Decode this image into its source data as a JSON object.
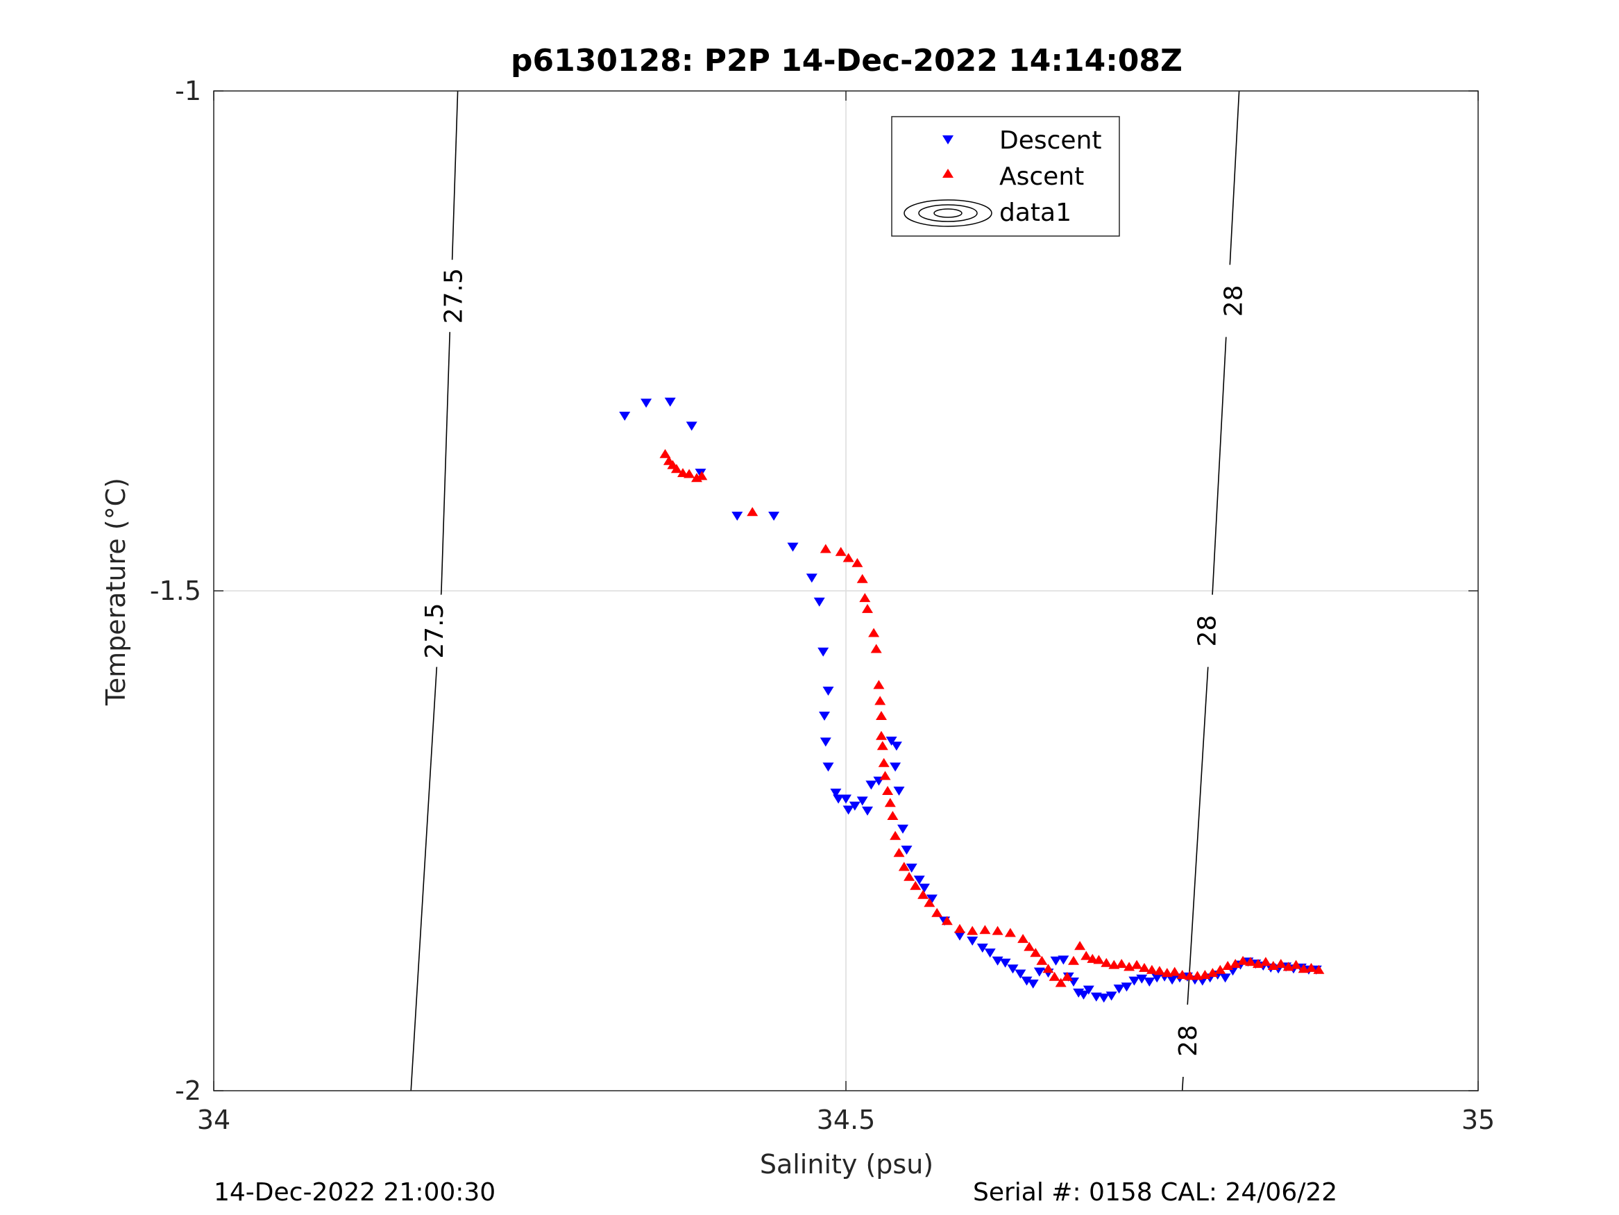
{
  "chart_data": {
    "type": "scatter",
    "title": "p6130128: P2P 14-Dec-2022 14:14:08Z",
    "xlabel": "Salinity (psu)",
    "ylabel": "Temperature (°C)",
    "xlim": [
      34,
      35
    ],
    "ylim": [
      -2,
      -1
    ],
    "xticks": [
      "34",
      "34.5",
      "35"
    ],
    "yticks": [
      "-1",
      "-1.5",
      "-2"
    ],
    "grid": true,
    "legend": {
      "placement": "top-center",
      "entries": [
        "Descent",
        "Ascent",
        "data1"
      ]
    },
    "series": [
      {
        "name": "Descent",
        "marker": "triangle-down",
        "color": "#0000ff",
        "points": [
          [
            34.325,
            -1.325
          ],
          [
            34.342,
            -1.312
          ],
          [
            34.361,
            -1.311
          ],
          [
            34.378,
            -1.335
          ],
          [
            34.385,
            -1.382
          ],
          [
            34.414,
            -1.425
          ],
          [
            34.443,
            -1.425
          ],
          [
            34.458,
            -1.456
          ],
          [
            34.473,
            -1.487
          ],
          [
            34.479,
            -1.511
          ],
          [
            34.482,
            -1.561
          ],
          [
            34.486,
            -1.6
          ],
          [
            34.483,
            -1.625
          ],
          [
            34.484,
            -1.651
          ],
          [
            34.486,
            -1.676
          ],
          [
            34.492,
            -1.702
          ],
          [
            34.494,
            -1.708
          ],
          [
            34.5,
            -1.708
          ],
          [
            34.502,
            -1.719
          ],
          [
            34.507,
            -1.715
          ],
          [
            34.513,
            -1.71
          ],
          [
            34.517,
            -1.72
          ],
          [
            34.52,
            -1.694
          ],
          [
            34.526,
            -1.69
          ],
          [
            34.536,
            -1.65
          ],
          [
            34.54,
            -1.655
          ],
          [
            34.539,
            -1.676
          ],
          [
            34.542,
            -1.7
          ],
          [
            34.545,
            -1.738
          ],
          [
            34.548,
            -1.759
          ],
          [
            34.552,
            -1.777
          ],
          [
            34.558,
            -1.789
          ],
          [
            34.562,
            -1.797
          ],
          [
            34.568,
            -1.808
          ],
          [
            34.578,
            -1.83
          ],
          [
            34.59,
            -1.845
          ],
          [
            34.6,
            -1.85
          ],
          [
            34.608,
            -1.857
          ],
          [
            34.614,
            -1.862
          ],
          [
            34.62,
            -1.87
          ],
          [
            34.626,
            -1.872
          ],
          [
            34.632,
            -1.878
          ],
          [
            34.638,
            -1.883
          ],
          [
            34.643,
            -1.89
          ],
          [
            34.648,
            -1.893
          ],
          [
            34.653,
            -1.881
          ],
          [
            34.66,
            -1.882
          ],
          [
            34.666,
            -1.87
          ],
          [
            34.672,
            -1.869
          ],
          [
            34.676,
            -1.886
          ],
          [
            34.68,
            -1.891
          ],
          [
            34.684,
            -1.902
          ],
          [
            34.688,
            -1.904
          ],
          [
            34.692,
            -1.899
          ],
          [
            34.698,
            -1.906
          ],
          [
            34.704,
            -1.907
          ],
          [
            34.71,
            -1.905
          ],
          [
            34.716,
            -1.898
          ],
          [
            34.722,
            -1.896
          ],
          [
            34.728,
            -1.89
          ],
          [
            34.734,
            -1.888
          ],
          [
            34.74,
            -1.891
          ],
          [
            34.746,
            -1.887
          ],
          [
            34.752,
            -1.886
          ],
          [
            34.758,
            -1.889
          ],
          [
            34.764,
            -1.887
          ],
          [
            34.77,
            -1.886
          ],
          [
            34.776,
            -1.889
          ],
          [
            34.782,
            -1.89
          ],
          [
            34.788,
            -1.887
          ],
          [
            34.794,
            -1.884
          ],
          [
            34.8,
            -1.887
          ],
          [
            34.806,
            -1.88
          ],
          [
            34.812,
            -1.874
          ],
          [
            34.818,
            -1.871
          ],
          [
            34.824,
            -1.873
          ],
          [
            34.83,
            -1.875
          ],
          [
            34.836,
            -1.877
          ],
          [
            34.842,
            -1.878
          ],
          [
            34.848,
            -1.876
          ],
          [
            34.854,
            -1.878
          ],
          [
            34.86,
            -1.877
          ],
          [
            34.866,
            -1.879
          ],
          [
            34.872,
            -1.879
          ]
        ]
      },
      {
        "name": "Ascent",
        "marker": "triangle-up",
        "color": "#ff0000",
        "points": [
          [
            34.357,
            -1.363
          ],
          [
            34.36,
            -1.37
          ],
          [
            34.363,
            -1.374
          ],
          [
            34.366,
            -1.378
          ],
          [
            34.371,
            -1.382
          ],
          [
            34.376,
            -1.383
          ],
          [
            34.382,
            -1.387
          ],
          [
            34.386,
            -1.385
          ],
          [
            34.426,
            -1.421
          ],
          [
            34.484,
            -1.458
          ],
          [
            34.496,
            -1.461
          ],
          [
            34.502,
            -1.467
          ],
          [
            34.509,
            -1.472
          ],
          [
            34.513,
            -1.488
          ],
          [
            34.515,
            -1.507
          ],
          [
            34.517,
            -1.518
          ],
          [
            34.522,
            -1.542
          ],
          [
            34.524,
            -1.558
          ],
          [
            34.526,
            -1.594
          ],
          [
            34.527,
            -1.61
          ],
          [
            34.528,
            -1.625
          ],
          [
            34.528,
            -1.645
          ],
          [
            34.529,
            -1.655
          ],
          [
            34.53,
            -1.672
          ],
          [
            34.531,
            -1.685
          ],
          [
            34.533,
            -1.7
          ],
          [
            34.535,
            -1.712
          ],
          [
            34.537,
            -1.725
          ],
          [
            34.539,
            -1.745
          ],
          [
            34.542,
            -1.762
          ],
          [
            34.546,
            -1.776
          ],
          [
            34.55,
            -1.786
          ],
          [
            34.555,
            -1.795
          ],
          [
            34.561,
            -1.804
          ],
          [
            34.566,
            -1.812
          ],
          [
            34.572,
            -1.822
          ],
          [
            34.58,
            -1.83
          ],
          [
            34.59,
            -1.838
          ],
          [
            34.6,
            -1.84
          ],
          [
            34.61,
            -1.839
          ],
          [
            34.62,
            -1.84
          ],
          [
            34.63,
            -1.842
          ],
          [
            34.64,
            -1.848
          ],
          [
            34.645,
            -1.856
          ],
          [
            34.65,
            -1.862
          ],
          [
            34.655,
            -1.87
          ],
          [
            34.66,
            -1.878
          ],
          [
            34.665,
            -1.886
          ],
          [
            34.67,
            -1.892
          ],
          [
            34.675,
            -1.886
          ],
          [
            34.68,
            -1.87
          ],
          [
            34.685,
            -1.855
          ],
          [
            34.69,
            -1.865
          ],
          [
            34.695,
            -1.868
          ],
          [
            34.7,
            -1.869
          ],
          [
            34.706,
            -1.872
          ],
          [
            34.712,
            -1.874
          ],
          [
            34.718,
            -1.873
          ],
          [
            34.724,
            -1.876
          ],
          [
            34.73,
            -1.874
          ],
          [
            34.736,
            -1.877
          ],
          [
            34.742,
            -1.879
          ],
          [
            34.748,
            -1.88
          ],
          [
            34.754,
            -1.882
          ],
          [
            34.76,
            -1.881
          ],
          [
            34.766,
            -1.884
          ],
          [
            34.772,
            -1.885
          ],
          [
            34.778,
            -1.885
          ],
          [
            34.784,
            -1.884
          ],
          [
            34.79,
            -1.882
          ],
          [
            34.796,
            -1.879
          ],
          [
            34.802,
            -1.875
          ],
          [
            34.808,
            -1.873
          ],
          [
            34.814,
            -1.87
          ],
          [
            34.82,
            -1.871
          ],
          [
            34.826,
            -1.873
          ],
          [
            34.832,
            -1.871
          ],
          [
            34.838,
            -1.875
          ],
          [
            34.844,
            -1.873
          ],
          [
            34.85,
            -1.876
          ],
          [
            34.856,
            -1.874
          ],
          [
            34.862,
            -1.878
          ],
          [
            34.868,
            -1.877
          ],
          [
            34.874,
            -1.879
          ]
        ]
      }
    ],
    "contours": [
      {
        "label": "27.5",
        "points": [
          [
            34.193,
            -1.0
          ],
          [
            34.18,
            -1.5
          ],
          [
            34.156,
            -2.0
          ]
        ],
        "label_positions": [
          [
            34.189,
            -1.205
          ],
          [
            34.174,
            -1.54
          ]
        ]
      },
      {
        "label": "28",
        "points": [
          [
            34.811,
            -1.0
          ],
          [
            34.79,
            -1.5
          ],
          [
            34.766,
            -2.0
          ]
        ],
        "label_positions": [
          [
            34.806,
            -1.21
          ],
          [
            34.785,
            -1.54
          ],
          [
            34.77,
            -1.95
          ]
        ]
      }
    ]
  },
  "footer": {
    "timestamp": "14-Dec-2022 21:00:30",
    "serial": "Serial #: 0158  CAL: 24/06/22"
  }
}
